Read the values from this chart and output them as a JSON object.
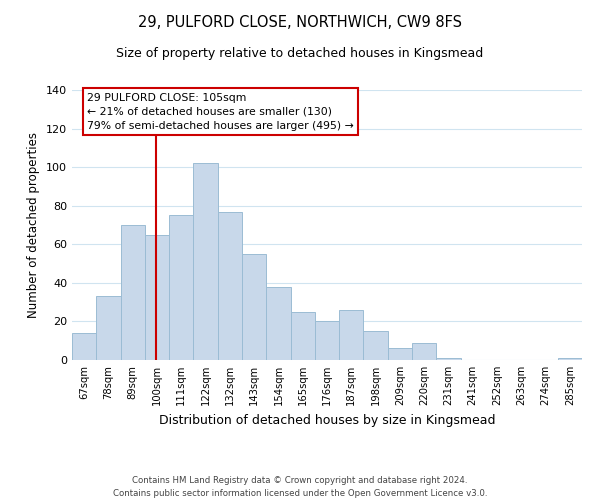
{
  "title": "29, PULFORD CLOSE, NORTHWICH, CW9 8FS",
  "subtitle": "Size of property relative to detached houses in Kingsmead",
  "xlabel": "Distribution of detached houses by size in Kingsmead",
  "ylabel": "Number of detached properties",
  "bar_color": "#c8d8ea",
  "bar_edge_color": "#9bbcd4",
  "categories": [
    "67sqm",
    "78sqm",
    "89sqm",
    "100sqm",
    "111sqm",
    "122sqm",
    "132sqm",
    "143sqm",
    "154sqm",
    "165sqm",
    "176sqm",
    "187sqm",
    "198sqm",
    "209sqm",
    "220sqm",
    "231sqm",
    "241sqm",
    "252sqm",
    "263sqm",
    "274sqm",
    "285sqm"
  ],
  "values": [
    14,
    33,
    70,
    65,
    75,
    102,
    77,
    55,
    38,
    25,
    20,
    26,
    15,
    6,
    9,
    1,
    0,
    0,
    0,
    0,
    1
  ],
  "ylim": [
    0,
    140
  ],
  "yticks": [
    0,
    20,
    40,
    60,
    80,
    100,
    120,
    140
  ],
  "annotation_title": "29 PULFORD CLOSE: 105sqm",
  "annotation_line1": "← 21% of detached houses are smaller (130)",
  "annotation_line2": "79% of semi-detached houses are larger (495) →",
  "annotation_box_color": "#ffffff",
  "annotation_border_color": "#cc0000",
  "vline_color": "#cc0000",
  "footer_line1": "Contains HM Land Registry data © Crown copyright and database right 2024.",
  "footer_line2": "Contains public sector information licensed under the Open Government Licence v3.0.",
  "vline_index": 3.45
}
